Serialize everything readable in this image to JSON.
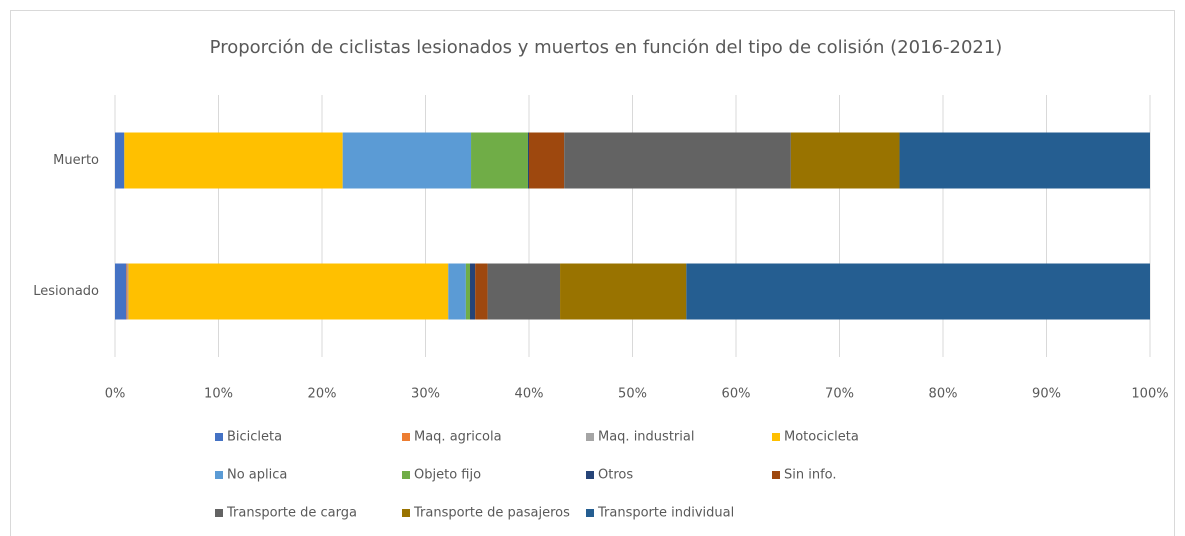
{
  "chart_data": {
    "type": "stacked_hbar",
    "title": "Proporción de ciclistas lesionados y muertos en función del tipo de colisión (2016-2021)",
    "categories": [
      "Muerto",
      "Lesionado"
    ],
    "series": [
      {
        "name": "Bicicleta",
        "color": "#4472c4",
        "values": [
          0.9,
          1.1
        ]
      },
      {
        "name": "Maq. agricola",
        "color": "#ed7d31",
        "values": [
          0,
          0.1
        ]
      },
      {
        "name": "Maq. industrial",
        "color": "#a5a5a5",
        "values": [
          0,
          0.1
        ]
      },
      {
        "name": "Motocicleta",
        "color": "#ffc000",
        "values": [
          21.1,
          30.9
        ]
      },
      {
        "name": "No aplica",
        "color": "#5b9bd5",
        "values": [
          12.4,
          1.7
        ]
      },
      {
        "name": "Objeto fijo",
        "color": "#70ad47",
        "values": [
          5.5,
          0.4
        ]
      },
      {
        "name": "Otros",
        "color": "#264478",
        "values": [
          0.1,
          0.5
        ]
      },
      {
        "name": "Sin info.",
        "color": "#9e480e",
        "values": [
          3.4,
          1.2
        ]
      },
      {
        "name": "Transporte de carga",
        "color": "#636363",
        "values": [
          21.9,
          7.0
        ]
      },
      {
        "name": "Transporte de pasajeros",
        "color": "#997300",
        "values": [
          10.5,
          12.2
        ]
      },
      {
        "name": "Transporte individual",
        "color": "#255e91",
        "values": [
          24.2,
          44.8
        ]
      }
    ],
    "xlim": [
      0,
      100
    ],
    "xticks": [
      {
        "value": 0,
        "label": "0%"
      },
      {
        "value": 10,
        "label": "10%"
      },
      {
        "value": 20,
        "label": "20%"
      },
      {
        "value": 30,
        "label": "30%"
      },
      {
        "value": 40,
        "label": "40%"
      },
      {
        "value": 50,
        "label": "50%"
      },
      {
        "value": 60,
        "label": "60%"
      },
      {
        "value": 70,
        "label": "70%"
      },
      {
        "value": 80,
        "label": "80%"
      },
      {
        "value": 90,
        "label": "90%"
      },
      {
        "value": 100,
        "label": "100%"
      }
    ],
    "grid": true
  }
}
